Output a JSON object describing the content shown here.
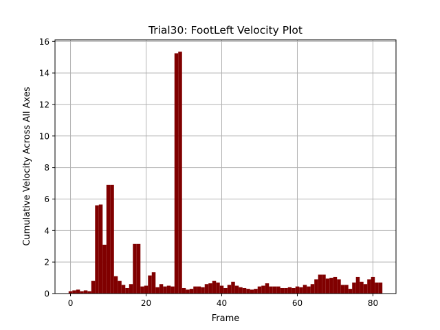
{
  "chart_data": {
    "type": "bar",
    "title": "Trial30: FootLeft Velocity Plot",
    "xlabel": "Frame",
    "ylabel": "Cumulative Velocity Across All Axes",
    "xlim": [
      -4.1,
      86.1
    ],
    "ylim": [
      0,
      16.1
    ],
    "xticks": [
      0,
      20,
      40,
      60,
      80
    ],
    "yticks": [
      0,
      2,
      4,
      6,
      8,
      10,
      12,
      14,
      16
    ],
    "grid": true,
    "bar_width": 1.0,
    "bar_color": "#800000",
    "x": [
      0,
      1,
      2,
      3,
      4,
      5,
      6,
      7,
      8,
      9,
      10,
      11,
      12,
      13,
      14,
      15,
      16,
      17,
      18,
      19,
      20,
      21,
      22,
      23,
      24,
      25,
      26,
      27,
      28,
      29,
      30,
      31,
      32,
      33,
      34,
      35,
      36,
      37,
      38,
      39,
      40,
      41,
      42,
      43,
      44,
      45,
      46,
      47,
      48,
      49,
      50,
      51,
      52,
      53,
      54,
      55,
      56,
      57,
      58,
      59,
      60,
      61,
      62,
      63,
      64,
      65,
      66,
      67,
      68,
      69,
      70,
      71,
      72,
      73,
      74,
      75,
      76,
      77,
      78,
      79,
      80,
      81,
      82
    ],
    "values": [
      0.15,
      0.2,
      0.25,
      0.15,
      0.2,
      0.15,
      0.8,
      5.6,
      5.65,
      3.1,
      6.9,
      6.9,
      1.1,
      0.8,
      0.55,
      0.35,
      0.6,
      3.15,
      3.15,
      0.45,
      0.5,
      1.15,
      1.35,
      0.4,
      0.6,
      0.45,
      0.5,
      0.45,
      15.25,
      15.35,
      0.35,
      0.25,
      0.3,
      0.45,
      0.45,
      0.4,
      0.6,
      0.65,
      0.8,
      0.7,
      0.5,
      0.35,
      0.55,
      0.75,
      0.5,
      0.4,
      0.35,
      0.3,
      0.25,
      0.3,
      0.45,
      0.5,
      0.65,
      0.45,
      0.45,
      0.45,
      0.35,
      0.35,
      0.4,
      0.35,
      0.45,
      0.4,
      0.55,
      0.45,
      0.6,
      0.9,
      1.2,
      1.2,
      0.95,
      1.0,
      1.05,
      0.9,
      0.55,
      0.55,
      0.3,
      0.7,
      1.05,
      0.75,
      0.6,
      0.9,
      1.05,
      0.7,
      0.7
    ]
  }
}
